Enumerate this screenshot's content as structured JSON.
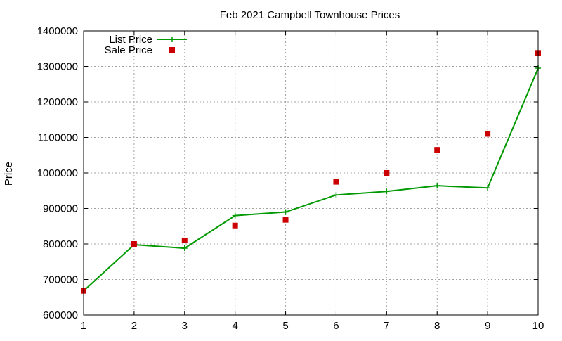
{
  "chart_data": {
    "type": "line",
    "title": "Feb 2021 Campbell Townhouse Prices",
    "xlabel": "",
    "ylabel": "Price",
    "xlim": [
      1,
      10
    ],
    "ylim": [
      600000,
      1400000
    ],
    "x_ticks": [
      1,
      2,
      3,
      4,
      5,
      6,
      7,
      8,
      9,
      10
    ],
    "y_ticks": [
      600000,
      700000,
      800000,
      900000,
      1000000,
      1100000,
      1200000,
      1300000,
      1400000
    ],
    "grid": true,
    "legend_position": "top-left",
    "series": [
      {
        "name": "List Price",
        "style": "linespoints",
        "marker": "plus",
        "color": "#009900",
        "x": [
          1,
          2,
          3,
          4,
          5,
          6,
          7,
          8,
          9,
          10
        ],
        "y": [
          668000,
          798000,
          788000,
          880000,
          890000,
          938000,
          948000,
          964000,
          958000,
          1295000
        ]
      },
      {
        "name": "Sale Price",
        "style": "points",
        "marker": "square",
        "color": "#cc0000",
        "x": [
          1,
          2,
          3,
          4,
          5,
          6,
          7,
          8,
          9,
          10
        ],
        "y": [
          668000,
          800000,
          810000,
          852000,
          868000,
          975000,
          1000000,
          1065000,
          1110000,
          1338000
        ]
      }
    ]
  }
}
